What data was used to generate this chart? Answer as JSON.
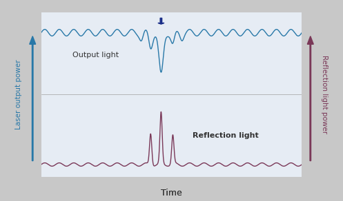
{
  "bg_color": "#c8c8c8",
  "panel_bg_top": "#e6ecf4",
  "panel_bg_bottom": "#e6ecf4",
  "output_wave_color": "#2878a8",
  "reflection_wave_color": "#7a3858",
  "arrow_down_color": "#1a2e88",
  "left_arrow_color": "#2878a8",
  "right_arrow_color": "#7a3858",
  "output_label": "Output light",
  "reflection_label": "Reflection light",
  "xlabel": "Time",
  "left_ylabel": "Laser output power",
  "right_ylabel": "Reflection light power",
  "box_edge_color": "#a0a0a0",
  "text_color": "#333333"
}
